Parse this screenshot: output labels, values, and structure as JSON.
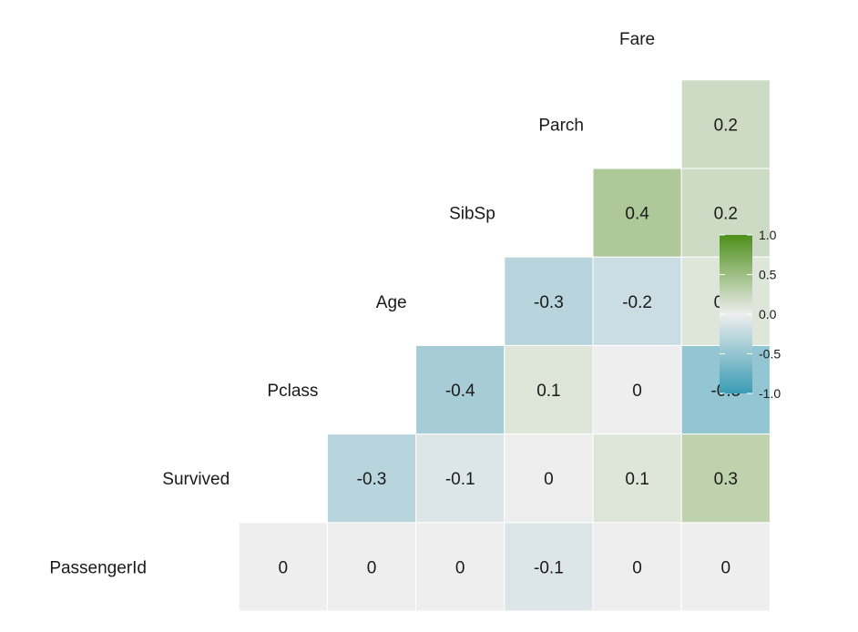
{
  "chart_data": {
    "type": "heatmap",
    "variables": [
      "PassengerId",
      "Survived",
      "Pclass",
      "Age",
      "SibSp",
      "Parch",
      "Fare"
    ],
    "cells": [
      {
        "row": "Survived",
        "col": "PassengerId",
        "value": 0,
        "label": "0"
      },
      {
        "row": "Pclass",
        "col": "PassengerId",
        "value": 0,
        "label": "0"
      },
      {
        "row": "Pclass",
        "col": "Survived",
        "value": -0.3,
        "label": "-0.3"
      },
      {
        "row": "Age",
        "col": "PassengerId",
        "value": 0,
        "label": "0"
      },
      {
        "row": "Age",
        "col": "Survived",
        "value": -0.1,
        "label": "-0.1"
      },
      {
        "row": "Age",
        "col": "Pclass",
        "value": -0.4,
        "label": "-0.4"
      },
      {
        "row": "SibSp",
        "col": "PassengerId",
        "value": -0.1,
        "label": "-0.1"
      },
      {
        "row": "SibSp",
        "col": "Survived",
        "value": 0,
        "label": "0"
      },
      {
        "row": "SibSp",
        "col": "Pclass",
        "value": 0.1,
        "label": "0.1"
      },
      {
        "row": "SibSp",
        "col": "Age",
        "value": -0.3,
        "label": "-0.3"
      },
      {
        "row": "Parch",
        "col": "PassengerId",
        "value": 0,
        "label": "0"
      },
      {
        "row": "Parch",
        "col": "Survived",
        "value": 0.1,
        "label": "0.1"
      },
      {
        "row": "Parch",
        "col": "Pclass",
        "value": 0,
        "label": "0"
      },
      {
        "row": "Parch",
        "col": "Age",
        "value": -0.2,
        "label": "-0.2"
      },
      {
        "row": "Parch",
        "col": "SibSp",
        "value": 0.4,
        "label": "0.4"
      },
      {
        "row": "Fare",
        "col": "PassengerId",
        "value": 0,
        "label": "0"
      },
      {
        "row": "Fare",
        "col": "Survived",
        "value": 0.3,
        "label": "0.3"
      },
      {
        "row": "Fare",
        "col": "Pclass",
        "value": -0.5,
        "label": "-0.5"
      },
      {
        "row": "Fare",
        "col": "Age",
        "value": 0.1,
        "label": "0.1"
      },
      {
        "row": "Fare",
        "col": "SibSp",
        "value": 0.2,
        "label": "0.2"
      },
      {
        "row": "Fare",
        "col": "Parch",
        "value": 0.2,
        "label": "0.2"
      }
    ],
    "color_scale": {
      "low": "#3a9bb5",
      "mid": "#eeeeee",
      "high": "#4d8f1a",
      "range": [
        -1,
        1
      ]
    },
    "legend": {
      "ticks": [
        "1.0",
        "0.5",
        "0.0",
        "-0.5",
        "-1.0"
      ],
      "tick_values": [
        1.0,
        0.5,
        0.0,
        -0.5,
        -1.0
      ],
      "placement": "right"
    },
    "title": "",
    "xlabel": "",
    "ylabel": ""
  }
}
